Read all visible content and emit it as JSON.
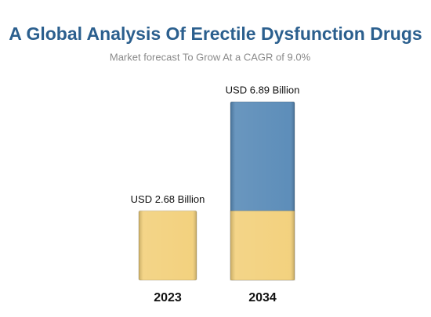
{
  "chart_data": {
    "type": "bar",
    "title": "A Global Analysis Of Erectile Dysfunction Drugs",
    "subtitle": "Market forecast To Grow At a CAGR of 9.0%",
    "categories": [
      "2023",
      "2034"
    ],
    "values": [
      2.68,
      6.89
    ],
    "value_labels": [
      "USD 2.68 Billion",
      "USD 6.89 Billion"
    ],
    "colors": [
      "#f2cf78",
      "#5588b6"
    ]
  }
}
